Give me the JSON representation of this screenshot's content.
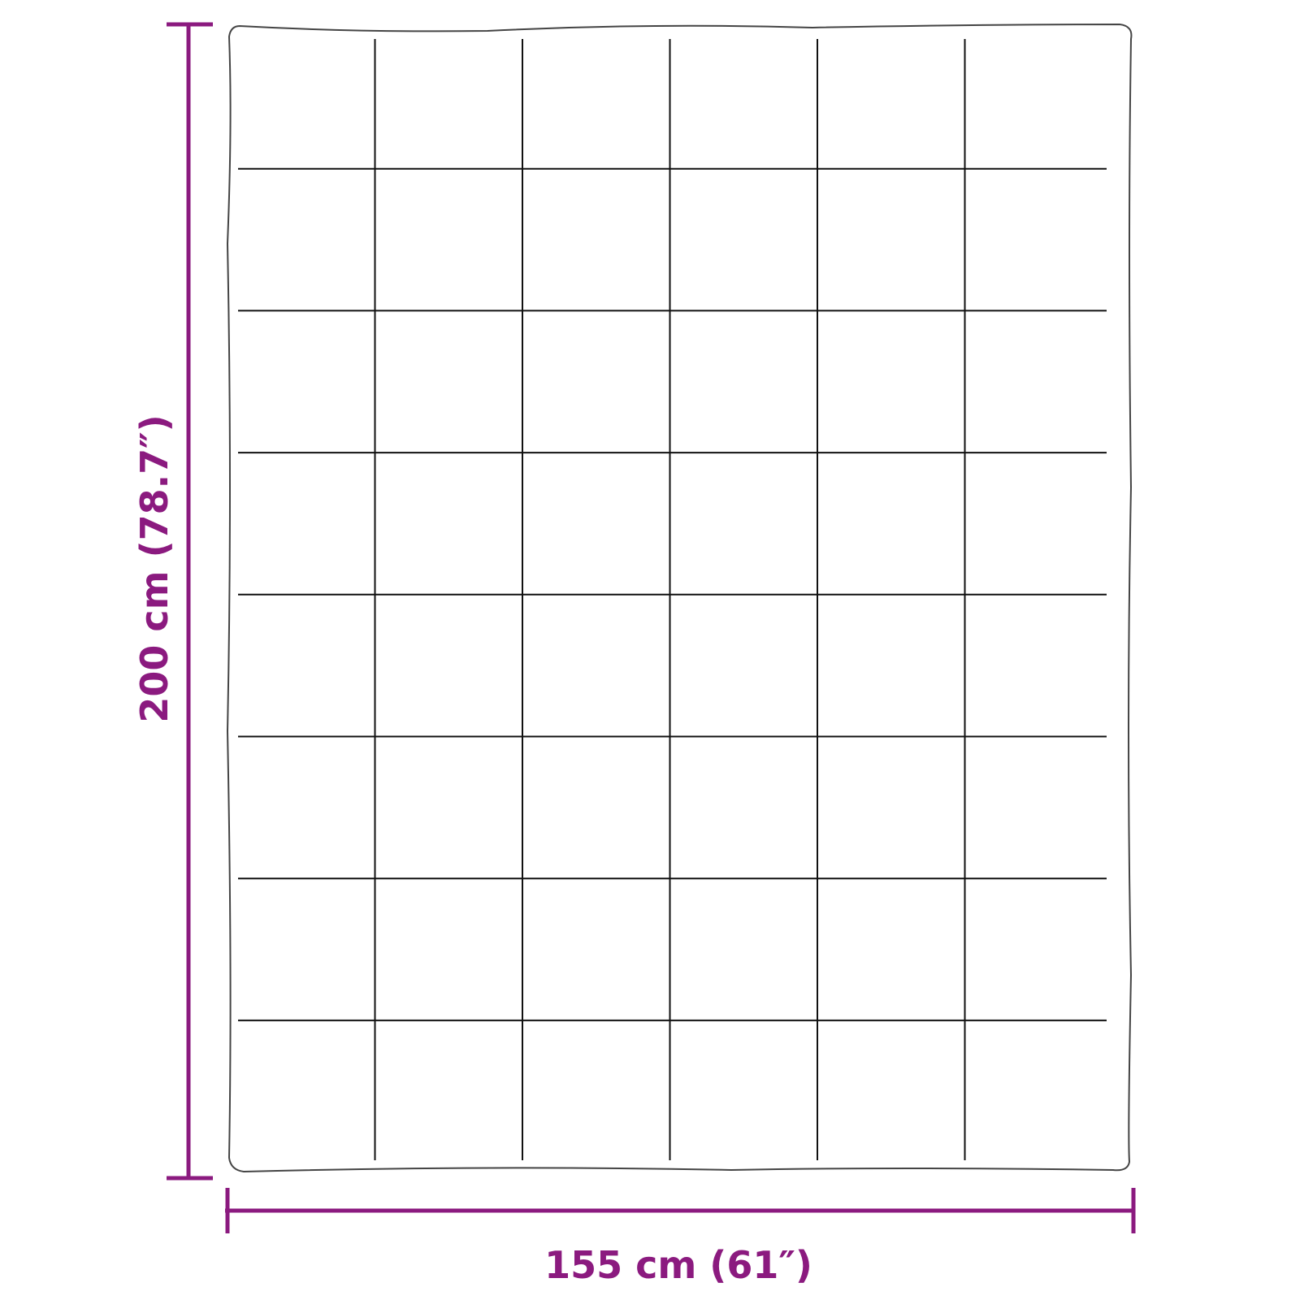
{
  "diagram": {
    "width_label": "155 cm (61″)",
    "height_label": "200 cm (78.7″)",
    "dimension_color": "#8b1a7f",
    "outline_color": "#222222",
    "quilt_grid": {
      "columns": 6,
      "rows": 8
    }
  }
}
